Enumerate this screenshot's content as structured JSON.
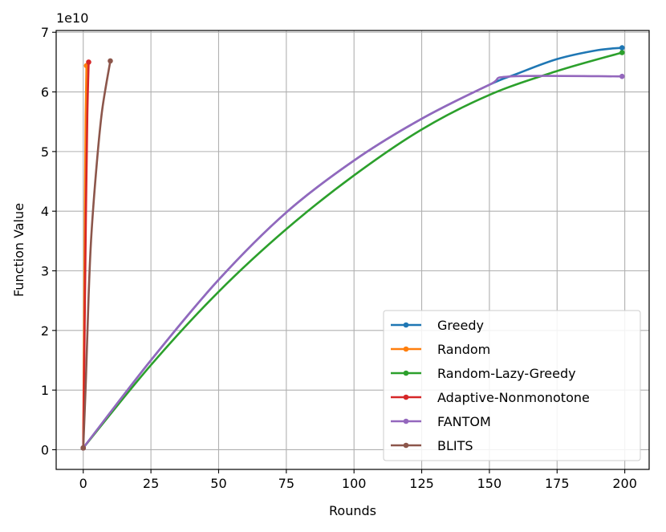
{
  "chart_data": {
    "type": "line",
    "xlabel": "Rounds",
    "ylabel": "Function Value",
    "y_scale_label": "1e10",
    "xlim": [
      -10,
      209
    ],
    "ylim": [
      -0.33,
      7.03
    ],
    "xticks": [
      0,
      25,
      50,
      75,
      100,
      125,
      150,
      175,
      200
    ],
    "yticks": [
      0,
      1,
      2,
      3,
      4,
      5,
      6,
      7
    ],
    "grid": true,
    "legend_position": "lower-right",
    "series": [
      {
        "name": "Greedy",
        "color": "#1f77b4",
        "points": [
          [
            0,
            0.03
          ],
          [
            25,
            1.5
          ],
          [
            50,
            2.85
          ],
          [
            75,
            3.98
          ],
          [
            100,
            4.85
          ],
          [
            125,
            5.55
          ],
          [
            150,
            6.12
          ],
          [
            160,
            6.3
          ],
          [
            175,
            6.55
          ],
          [
            190,
            6.7
          ],
          [
            199,
            6.74
          ]
        ]
      },
      {
        "name": "Random",
        "color": "#ff7f0e",
        "points": [
          [
            0,
            0.03
          ],
          [
            0.3,
            2.0
          ],
          [
            0.6,
            4.0
          ],
          [
            0.9,
            5.6
          ],
          [
            1.2,
            6.44
          ]
        ]
      },
      {
        "name": "Random-Lazy-Greedy",
        "color": "#2ca02c",
        "points": [
          [
            0,
            0.03
          ],
          [
            25,
            1.42
          ],
          [
            50,
            2.65
          ],
          [
            75,
            3.7
          ],
          [
            100,
            4.6
          ],
          [
            125,
            5.37
          ],
          [
            150,
            5.95
          ],
          [
            175,
            6.35
          ],
          [
            199,
            6.66
          ]
        ]
      },
      {
        "name": "Adaptive-Nonmonotone",
        "color": "#d62728",
        "points": [
          [
            0,
            0.03
          ],
          [
            0.5,
            2.0
          ],
          [
            1,
            4.0
          ],
          [
            1.5,
            5.6
          ],
          [
            2,
            6.5
          ]
        ]
      },
      {
        "name": "FANTOM",
        "color": "#9467bd",
        "points": [
          [
            0,
            0.03
          ],
          [
            25,
            1.5
          ],
          [
            50,
            2.85
          ],
          [
            75,
            3.98
          ],
          [
            100,
            4.85
          ],
          [
            125,
            5.55
          ],
          [
            150,
            6.12
          ],
          [
            158,
            6.26
          ],
          [
            199,
            6.26
          ]
        ]
      },
      {
        "name": "BLITS",
        "color": "#8c564b",
        "points": [
          [
            0,
            0.03
          ],
          [
            1,
            1.2
          ],
          [
            2,
            2.6
          ],
          [
            3,
            3.6
          ],
          [
            5,
            4.8
          ],
          [
            7,
            5.7
          ],
          [
            10,
            6.52
          ]
        ]
      }
    ]
  }
}
